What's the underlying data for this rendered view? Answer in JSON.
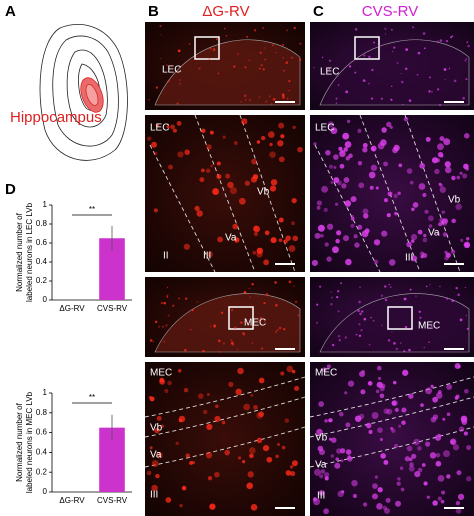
{
  "panel_labels": [
    "A",
    "B",
    "C",
    "D"
  ],
  "column_titles": [
    "ΔG-RV",
    "CVS-RV"
  ],
  "region_label": "Hippocampus",
  "micrographs": [
    {
      "labels": [
        "LEC"
      ]
    },
    {
      "labels": [
        "LEC",
        "Vb",
        "Va",
        "II",
        "III"
      ]
    },
    {
      "labels": [
        "MEC"
      ]
    },
    {
      "labels": [
        "MEC",
        "Vb",
        "Va",
        "III"
      ]
    },
    {
      "labels": [
        "LEC"
      ]
    },
    {
      "labels": [
        "LEC",
        "Vb",
        "Va",
        "III"
      ]
    },
    {
      "labels": [
        "MEC"
      ]
    },
    {
      "labels": [
        "MEC",
        "Vb",
        "Va",
        "III"
      ]
    }
  ],
  "chart_data": [
    {
      "type": "bar",
      "ylabel": [
        "Normalized number of",
        "labeled neurons in LEC LVb"
      ],
      "categories": [
        "ΔG-RV",
        "CVS-RV"
      ],
      "values": [
        0,
        0.65
      ],
      "errors": [
        null,
        0.13
      ],
      "color": "#cc33cc",
      "ylim": [
        0,
        1
      ],
      "yticks": [
        0,
        0.2,
        0.4,
        0.6,
        0.8,
        1
      ],
      "annotation": "**"
    },
    {
      "type": "bar",
      "ylabel": [
        "Normalized number of",
        "labeled neurons in MEC LVb"
      ],
      "categories": [
        "ΔG-RV",
        "CVS-RV"
      ],
      "values": [
        0,
        0.65
      ],
      "errors": [
        null,
        0.13
      ],
      "color": "#cc33cc",
      "ylim": [
        0,
        1
      ],
      "yticks": [
        0,
        0.2,
        0.4,
        0.6,
        0.8,
        1
      ],
      "annotation": "**"
    }
  ]
}
